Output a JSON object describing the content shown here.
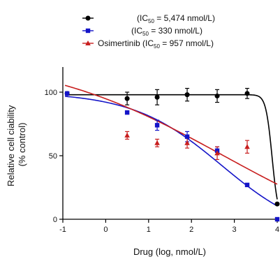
{
  "chart_data": {
    "type": "scatter",
    "title": "",
    "xlabel": "Drug (log, nmol/L)",
    "ylabel_lines": [
      "Relative cell ciability",
      "(% control)"
    ],
    "xlim": [
      -1,
      4
    ],
    "ylim": [
      0,
      110
    ],
    "x_ticks": [
      -1,
      0,
      1,
      2,
      3,
      4
    ],
    "y_ticks": [
      0,
      50,
      100
    ],
    "grid": false,
    "legend_position": "top",
    "series": [
      {
        "name": "",
        "legend_label": "(IC50 = 5,474 nmol/L)",
        "legend_main": "(IC",
        "legend_sub": "50",
        "legend_rest": " = 5,474 nmol/L)",
        "marker": "circle",
        "color": "#000000",
        "x": [
          -0.9,
          0.5,
          1.2,
          1.9,
          2.6,
          3.3,
          4.0
        ],
        "y": [
          99,
          95,
          96,
          98,
          97,
          99,
          12
        ],
        "err": [
          0,
          5,
          6,
          5,
          5,
          4,
          0
        ],
        "fit": {
          "top": 98,
          "bottom": 0,
          "ec50": 3.88,
          "hill": 6
        }
      },
      {
        "name": "",
        "legend_label": "(IC50 = 330 nmol/L)",
        "legend_main": "(IC",
        "legend_sub": "50",
        "legend_rest": " = 330 nmol/L)",
        "marker": "square",
        "color": "#1414c8",
        "x": [
          -0.9,
          0.5,
          1.2,
          1.9,
          2.6,
          3.3,
          4.0
        ],
        "y": [
          99,
          84,
          74,
          65,
          54,
          27,
          0
        ],
        "err": [
          0,
          1,
          4,
          4,
          3,
          1,
          0
        ],
        "fit": {
          "top": 100,
          "bottom": -15,
          "ec50": 2.7,
          "hill": 0.42
        }
      },
      {
        "name": "Osimertinib",
        "legend_label": "Osimertinib (IC50 = 957 nmol/L)",
        "legend_main": "Osimertinib (IC",
        "legend_sub": "50",
        "legend_rest": " = 957 nmol/L)",
        "marker": "triangle",
        "color": "#c81e1e",
        "x": [
          0.5,
          1.2,
          1.9,
          2.6,
          3.3
        ],
        "y": [
          66,
          60,
          60,
          52,
          57
        ],
        "err": [
          3,
          3,
          4,
          5,
          5
        ],
        "fit": {
          "top": 130,
          "bottom": -30,
          "ec50": 2.75,
          "hill": 0.2
        }
      }
    ]
  }
}
